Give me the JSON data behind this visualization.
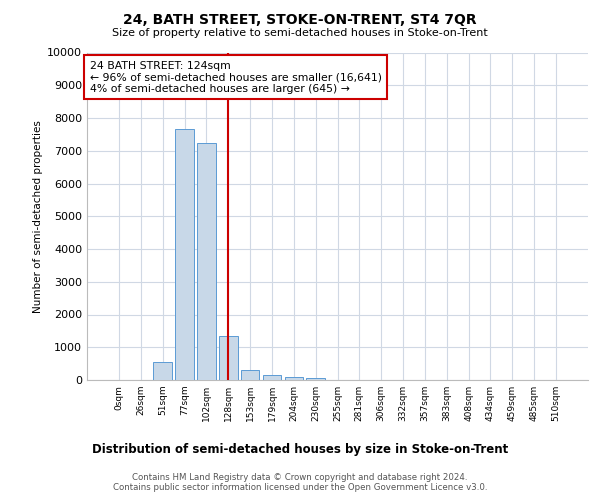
{
  "title": "24, BATH STREET, STOKE-ON-TRENT, ST4 7QR",
  "subtitle": "Size of property relative to semi-detached houses in Stoke-on-Trent",
  "xlabel": "Distribution of semi-detached houses by size in Stoke-on-Trent",
  "ylabel": "Number of semi-detached properties",
  "bar_labels": [
    "0sqm",
    "26sqm",
    "51sqm",
    "77sqm",
    "102sqm",
    "128sqm",
    "153sqm",
    "179sqm",
    "204sqm",
    "230sqm",
    "255sqm",
    "281sqm",
    "306sqm",
    "332sqm",
    "357sqm",
    "383sqm",
    "408sqm",
    "434sqm",
    "459sqm",
    "485sqm",
    "510sqm"
  ],
  "bar_values": [
    0,
    0,
    560,
    7650,
    7250,
    1350,
    310,
    160,
    80,
    65,
    0,
    0,
    0,
    0,
    0,
    0,
    0,
    0,
    0,
    0,
    0
  ],
  "bar_color": "#c8d8e8",
  "bar_edge_color": "#5b9bd5",
  "property_line_x": 5,
  "property_line_color": "#cc0000",
  "annotation_line1": "24 BATH STREET: 124sqm",
  "annotation_line2": "← 96% of semi-detached houses are smaller (16,641)",
  "annotation_line3": "4% of semi-detached houses are larger (645) →",
  "annotation_box_color": "#ffffff",
  "annotation_box_edge_color": "#cc0000",
  "ylim": [
    0,
    10000
  ],
  "yticks": [
    0,
    1000,
    2000,
    3000,
    4000,
    5000,
    6000,
    7000,
    8000,
    9000,
    10000
  ],
  "footer": "Contains HM Land Registry data © Crown copyright and database right 2024.\nContains public sector information licensed under the Open Government Licence v3.0.",
  "background_color": "#ffffff",
  "grid_color": "#d0d8e4"
}
